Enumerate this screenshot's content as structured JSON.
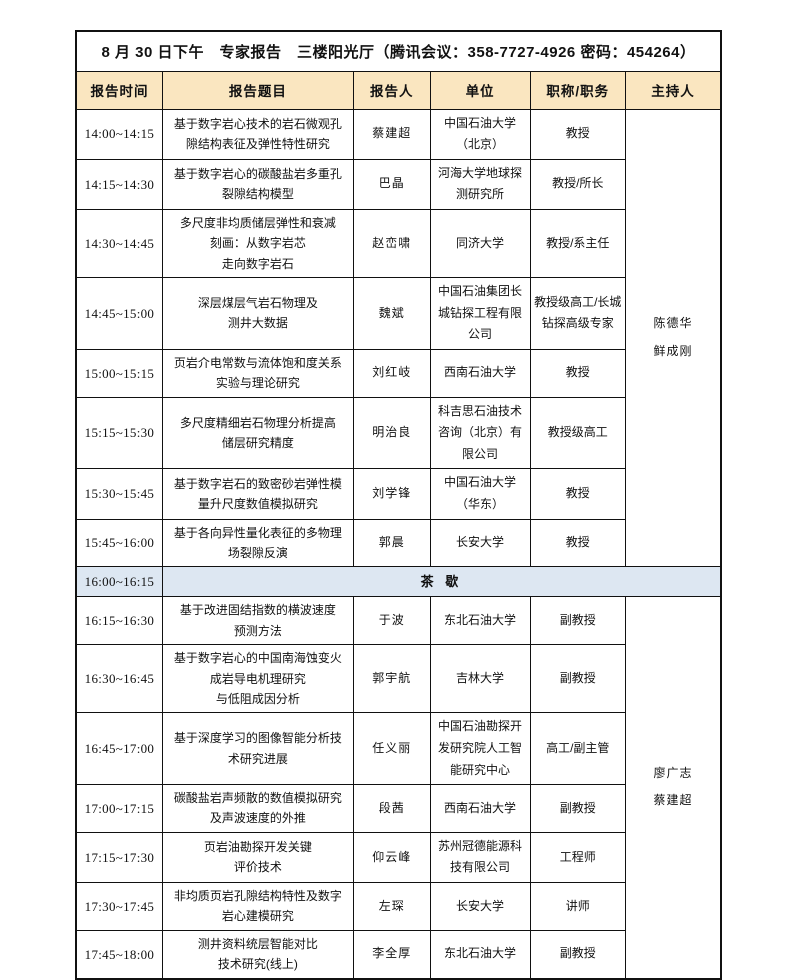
{
  "page": {
    "title": "8 月 30 日下午　专家报告　三楼阳光厅（腾讯会议：358-7727-4926 密码：454264）"
  },
  "colors": {
    "header_bg": "#FAE6C0",
    "break_bg": "#DDE7F2",
    "border": "#111111"
  },
  "table": {
    "columns": [
      "报告时间",
      "报告题目",
      "报告人",
      "单位",
      "职称/职务",
      "主持人"
    ],
    "session1": {
      "hosts": [
        "陈德华",
        "鲜成刚"
      ],
      "rows": [
        {
          "time": "14:00~14:15",
          "topic": "基于数字岩心技术的岩石微观孔\n隙结构表征及弹性特性研究",
          "speaker": "蔡建超",
          "unit": "中国石油大学\n（北京）",
          "rank": "教授"
        },
        {
          "time": "14:15~14:30",
          "topic": "基于数字岩心的碳酸盐岩多重孔\n裂隙结构模型",
          "speaker": "巴晶",
          "unit": "河海大学地球探\n测研究所",
          "rank": "教授/所长"
        },
        {
          "time": "14:30~14:45",
          "topic": "多尺度非均质储层弹性和衰减\n刻画：从数字岩芯\n走向数字岩石",
          "speaker": "赵峦啸",
          "unit": "同济大学",
          "rank": "教授/系主任"
        },
        {
          "time": "14:45~15:00",
          "topic": "深层煤层气岩石物理及\n测井大数据",
          "speaker": "魏斌",
          "unit": "中国石油集团长\n城钻探工程有限\n公司",
          "rank": "教授级高工/长城\n钻探高级专家"
        },
        {
          "time": "15:00~15:15",
          "topic": "页岩介电常数与流体饱和度关系\n实验与理论研究",
          "speaker": "刘红岐",
          "unit": "西南石油大学",
          "rank": "教授"
        },
        {
          "time": "15:15~15:30",
          "topic": "多尺度精细岩石物理分析提高\n储层研究精度",
          "speaker": "明治良",
          "unit": "科吉思石油技术\n咨询（北京）有\n限公司",
          "rank": "教授级高工"
        },
        {
          "time": "15:30~15:45",
          "topic": "基于数字岩石的致密砂岩弹性模\n量升尺度数值模拟研究",
          "speaker": "刘学锋",
          "unit": "中国石油大学\n（华东）",
          "rank": "教授"
        },
        {
          "time": "15:45~16:00",
          "topic": "基于各向异性量化表征的多物理\n场裂隙反演",
          "speaker": "郭晨",
          "unit": "长安大学",
          "rank": "教授"
        }
      ]
    },
    "break": {
      "time": "16:00~16:15",
      "label": "茶 歇"
    },
    "session2": {
      "hosts": [
        "廖广志",
        "蔡建超"
      ],
      "rows": [
        {
          "time": "16:15~16:30",
          "topic": "基于改进固结指数的横波速度\n预测方法",
          "speaker": "于波",
          "unit": "东北石油大学",
          "rank": "副教授"
        },
        {
          "time": "16:30~16:45",
          "topic": "基于数字岩心的中国南海蚀变火\n成岩导电机理研究\n与低阻成因分析",
          "speaker": "郭宇航",
          "unit": "吉林大学",
          "rank": "副教授"
        },
        {
          "time": "16:45~17:00",
          "topic": "基于深度学习的图像智能分析技\n术研究进展",
          "speaker": "任义丽",
          "unit": "中国石油勘探开\n发研究院人工智\n能研究中心",
          "rank": "高工/副主管"
        },
        {
          "time": "17:00~17:15",
          "topic": "碳酸盐岩声频散的数值模拟研究\n及声波速度的外推",
          "speaker": "段茜",
          "unit": "西南石油大学",
          "rank": "副教授"
        },
        {
          "time": "17:15~17:30",
          "topic": "页岩油勘探开发关键\n评价技术",
          "speaker": "仰云峰",
          "unit": "苏州冠德能源科\n技有限公司",
          "rank": "工程师"
        },
        {
          "time": "17:30~17:45",
          "topic": "非均质页岩孔隙结构特性及数字\n岩心建模研究",
          "speaker": "左琛",
          "unit": "长安大学",
          "rank": "讲师"
        },
        {
          "time": "17:45~18:00",
          "topic": "测井资料统层智能对比\n技术研究(线上)",
          "speaker": "李全厚",
          "unit": "东北石油大学",
          "rank": "副教授"
        }
      ]
    }
  }
}
